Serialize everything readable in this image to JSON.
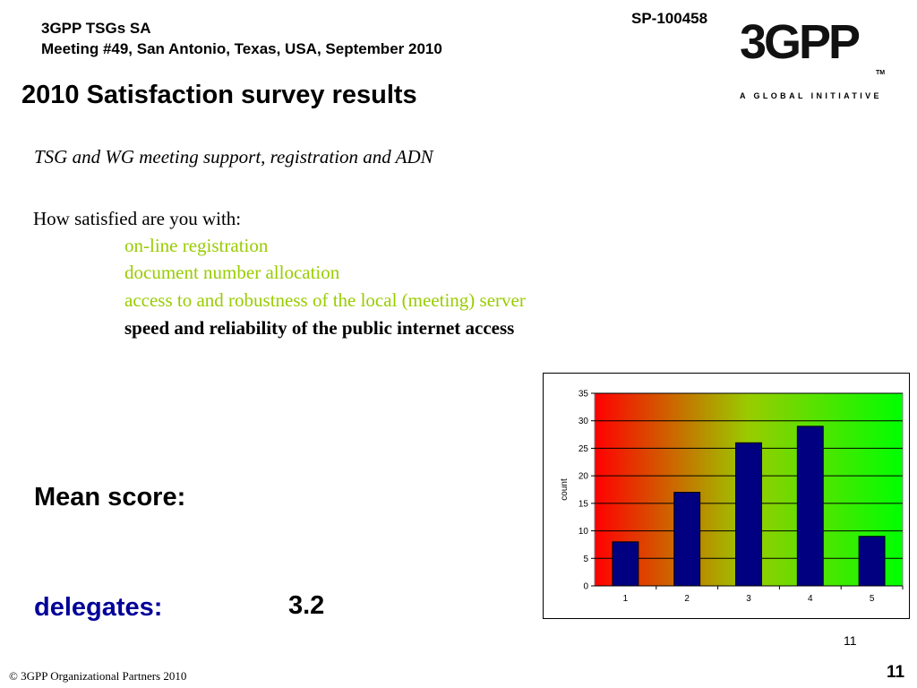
{
  "header": {
    "line1": "3GPP TSGs SA",
    "line2": "Meeting #49, San Antonio, Texas, USA, September 2010",
    "doc_id": "SP-100458"
  },
  "logo": {
    "mark": "3GPP",
    "tm": "TM",
    "tagline": "A GLOBAL INITIATIVE"
  },
  "slide": {
    "title": "2010 Satisfaction survey results",
    "subtitle": "TSG and WG meeting support, registration and ADN",
    "question": "How satisfied are you with:",
    "items": [
      {
        "text": "on-line registration",
        "color": "#99cc00"
      },
      {
        "text": "document number allocation",
        "color": "#99cc00"
      },
      {
        "text": "access to and robustness of the local (meeting) server",
        "color": "#99cc00"
      },
      {
        "text": "speed and reliability of the public internet access",
        "color": "#000000"
      }
    ],
    "mean_label": "Mean score:",
    "delegates_label": "delegates:",
    "delegates_value": "3.2",
    "delegates_color": "#000099"
  },
  "chart_data": {
    "type": "bar",
    "categories": [
      "1",
      "2",
      "3",
      "4",
      "5"
    ],
    "values": [
      8,
      17,
      26,
      29,
      9
    ],
    "xlabel": "",
    "ylabel": "count",
    "ylim": [
      0,
      35
    ],
    "yticks": [
      "0",
      "5",
      "10",
      "15",
      "20",
      "25",
      "30",
      "35"
    ],
    "grid": true,
    "bar_color": "#000080",
    "background_gradient": [
      "#ff0000",
      "#99cc00",
      "#00ff00"
    ]
  },
  "footer": {
    "chart_page_number": "11",
    "copyright": "© 3GPP Organizational Partners 2010",
    "page_number": "11"
  }
}
